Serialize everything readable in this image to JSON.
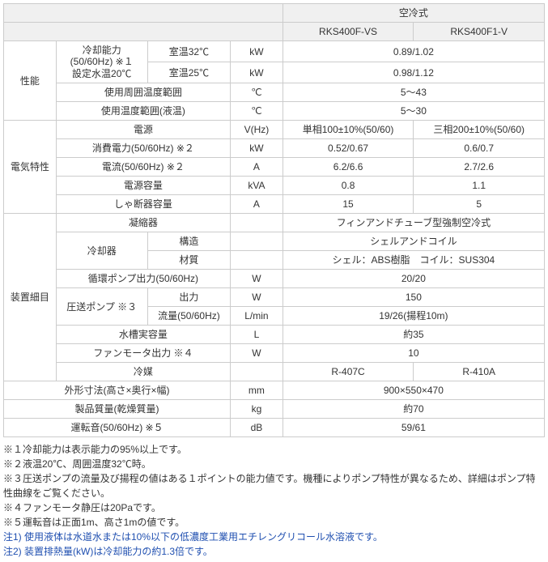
{
  "header": {
    "cooling_type": "空冷式",
    "model1": "RKS400F-VS",
    "model2": "RKS400F1-V"
  },
  "rows": {
    "perf": "性能",
    "cooling_cap": "冷却能力(50/60Hz) ※１\n設定水温20℃",
    "room32": "室温32℃",
    "room25": "室温25℃",
    "kw": "kW",
    "v1": "0.89/1.02",
    "v2": "0.98/1.12",
    "amb_range": "使用周囲温度範囲",
    "amb_unit": "℃",
    "amb_val": "5～43",
    "liq_range": "使用温度範囲(液温)",
    "liq_unit": "℃",
    "liq_val": "5～30",
    "elec": "電気特性",
    "power_src": "電源",
    "vhz": "V(Hz)",
    "ps1": "単相100±10%(50/60)",
    "ps2": "三相200±10%(50/60)",
    "consumption": "消費電力(50/60Hz) ※２",
    "cons1": "0.52/0.67",
    "cons2": "0.6/0.7",
    "current": "電流(50/60Hz) ※２",
    "amp": "A",
    "cur1": "6.2/6.6",
    "cur2": "2.7/2.6",
    "capacity": "電源容量",
    "kva": "kVA",
    "cap1": "0.8",
    "cap2": "1.1",
    "breaker": "しゃ断器容量",
    "brk1": "15",
    "brk2": "5",
    "details": "装置細目",
    "condenser": "凝縮器",
    "condenser_val": "フィンアンドチューブ型強制空冷式",
    "cooler": "冷却器",
    "structure": "構造",
    "structure_val": "シェルアンドコイル",
    "material": "材質",
    "material_val": "シェル：ABS樹脂　コイル：SUS304",
    "circ_pump": "循環ポンプ出力(50/60Hz)",
    "w": "W",
    "circ_val": "20/20",
    "feed_pump": "圧送ポンプ ※３",
    "output": "出力",
    "output_val": "150",
    "flow": "流量(50/60Hz)",
    "lmin": "L/min",
    "flow_val": "19/26(揚程10m)",
    "tank": "水槽実容量",
    "liter": "L",
    "tank_val": "約35",
    "fan": "ファンモータ出力 ※４",
    "fan_val": "10",
    "refrig": "冷媒",
    "refrig1": "R-407C",
    "refrig2": "R-410A",
    "dims": "外形寸法(高さ×奥行×幅)",
    "mm": "mm",
    "dims_val": "900×550×470",
    "mass": "製品質量(乾燥質量)",
    "kg": "kg",
    "mass_val": "約70",
    "noise": "運転音(50/60Hz) ※５",
    "db": "dB",
    "noise_val": "59/61"
  },
  "notes": {
    "n1": "※１冷却能力は表示能力の95%以上です。",
    "n2": "※２液温20℃、周囲温度32℃時。",
    "n3": "※３圧送ポンプの流量及び揚程の値はある１ポイントの能力値です。機種によりポンプ特性が異なるため、詳細はポンプ特性曲線をご覧ください。",
    "n4": "※４ファンモータ静圧は20Paです。",
    "n5": "※５運転音は正面1m、高さ1mの値です。",
    "b1": "注1) 使用液体は水道水または10%以下の低濃度工業用エチレングリコール水溶液です。",
    "b2": "注2) 装置排熱量(kW)は冷却能力の約1.3倍です。"
  }
}
